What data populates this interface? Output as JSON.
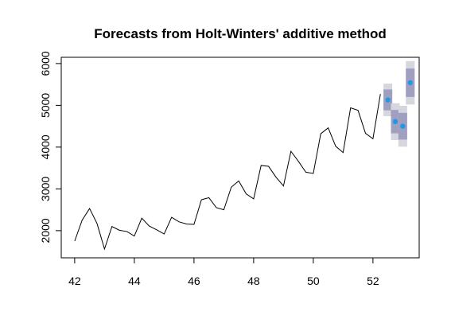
{
  "chart_data": {
    "type": "line",
    "title": "Forecasts from Holt-Winters' additive method",
    "xlabel": "",
    "ylabel": "",
    "xlim": [
      41.55,
      53.55
    ],
    "ylim": [
      1350,
      6150
    ],
    "x_ticks": [
      42,
      44,
      46,
      48,
      50,
      52
    ],
    "y_ticks": [
      2000,
      3000,
      4000,
      5000,
      6000
    ],
    "grid": false,
    "legend": "none",
    "series": [
      {
        "x": [
          42,
          42.25,
          42.5,
          42.75,
          43,
          43.25,
          43.5,
          43.75,
          44,
          44.25,
          44.5,
          44.75,
          45,
          45.25,
          45.5,
          45.75,
          46,
          46.25,
          46.5,
          46.75,
          47,
          47.25,
          47.5,
          47.75,
          48,
          48.25,
          48.5,
          48.75,
          49,
          49.25,
          49.5,
          49.75,
          50,
          50.25,
          50.5,
          50.75,
          51,
          51.25,
          51.5,
          51.75,
          52,
          52.25
        ],
        "values": [
          1750,
          2250,
          2530,
          2170,
          1560,
          2100,
          2010,
          1980,
          1870,
          2300,
          2110,
          2020,
          1920,
          2320,
          2210,
          2160,
          2150,
          2740,
          2790,
          2550,
          2500,
          3040,
          3190,
          2880,
          2760,
          3560,
          3540,
          3280,
          3070,
          3900,
          3660,
          3400,
          3370,
          4320,
          4460,
          4020,
          3870,
          4940,
          4880,
          4330,
          4200,
          5270
        ]
      }
    ],
    "forecast": {
      "x": [
        52.5,
        52.75,
        53,
        53.25
      ],
      "point": [
        5130,
        4610,
        4500,
        5540
      ],
      "lo80": [
        4880,
        4330,
        4180,
        5200
      ],
      "hi80": [
        5380,
        4890,
        4820,
        5880
      ],
      "lo95": [
        4740,
        4170,
        4010,
        5020
      ],
      "hi95": [
        5520,
        5050,
        4990,
        6060
      ]
    },
    "colors": {
      "line": "#000000",
      "band95": "#d6d6df",
      "band80": "#9f9fbf",
      "point": "#2297e6"
    }
  }
}
